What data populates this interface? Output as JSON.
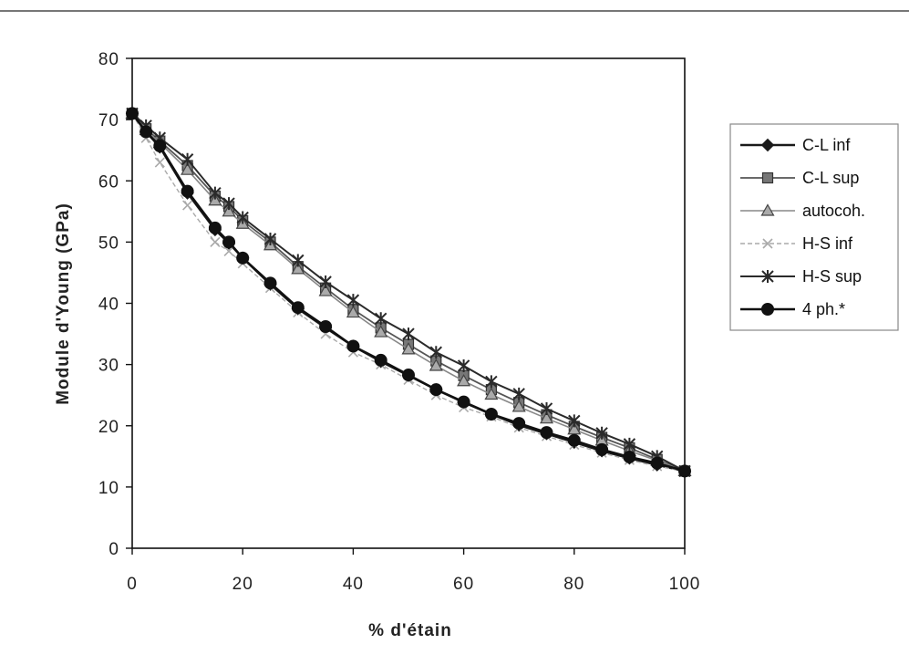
{
  "chart_data": {
    "type": "line",
    "title": "",
    "xlabel": "%  d'étain",
    "ylabel": "Module  d'Young  (GPa)",
    "xlim": [
      0,
      100
    ],
    "ylim": [
      0,
      80
    ],
    "xticks": [
      0,
      20,
      40,
      60,
      80,
      100
    ],
    "yticks": [
      0,
      10,
      20,
      30,
      40,
      50,
      60,
      70,
      80
    ],
    "grid": false,
    "legend_position": "right",
    "x": [
      0,
      2.5,
      5,
      10,
      15,
      17.5,
      20,
      25,
      30,
      35,
      40,
      45,
      50,
      55,
      60,
      65,
      70,
      75,
      80,
      85,
      90,
      95,
      100
    ],
    "series": [
      {
        "name": "C-L  inf",
        "marker": "diamond",
        "color": "#1a1a1a",
        "values": [
          71.0,
          68.0,
          65.5,
          58.0,
          52.0,
          49.8,
          47.4,
          43.1,
          39.1,
          36.0,
          33.0,
          30.5,
          28.2,
          25.9,
          23.8,
          21.9,
          20.1,
          18.7,
          17.3,
          15.9,
          14.7,
          13.6,
          12.6
        ]
      },
      {
        "name": "C-L  sup",
        "marker": "square",
        "color": "#555555",
        "values": [
          71.0,
          68.5,
          66.5,
          62.5,
          57.5,
          55.8,
          53.5,
          50.0,
          46.0,
          42.5,
          39.0,
          36.0,
          33.3,
          30.6,
          28.2,
          25.9,
          23.8,
          21.8,
          19.9,
          18.1,
          16.4,
          14.5,
          12.6
        ]
      },
      {
        "name": "autocoh.",
        "marker": "triangle",
        "color": "#888888",
        "values": [
          71.0,
          68.3,
          66.2,
          61.8,
          56.8,
          55.0,
          53.0,
          49.5,
          45.6,
          42.0,
          38.5,
          35.3,
          32.5,
          29.8,
          27.3,
          25.1,
          23.1,
          21.2,
          19.4,
          17.6,
          15.9,
          14.3,
          12.6
        ]
      },
      {
        "name": "H-S  inf",
        "marker": "x",
        "color": "#aaaaaa",
        "values": [
          71.0,
          67.0,
          63.0,
          56.0,
          50.0,
          48.5,
          46.5,
          42.5,
          38.5,
          35.0,
          32.0,
          30.0,
          27.5,
          25.0,
          23.0,
          21.5,
          19.7,
          18.3,
          16.9,
          15.6,
          14.4,
          13.4,
          12.6
        ]
      },
      {
        "name": "H-S  sup",
        "marker": "asterisk",
        "color": "#2a2a2a",
        "values": [
          71.0,
          69.0,
          67.0,
          63.5,
          58.0,
          56.3,
          54.0,
          50.5,
          47.0,
          43.5,
          40.5,
          37.5,
          35.0,
          32.0,
          29.8,
          27.2,
          25.2,
          22.8,
          20.8,
          18.8,
          17.0,
          15.0,
          12.6
        ]
      },
      {
        "name": "4  ph.*",
        "marker": "circle",
        "color": "#111111",
        "values": [
          71.0,
          68.0,
          65.7,
          58.3,
          52.3,
          50.0,
          47.4,
          43.3,
          39.3,
          36.2,
          33.0,
          30.7,
          28.3,
          25.9,
          23.9,
          21.9,
          20.4,
          18.9,
          17.6,
          16.1,
          14.9,
          13.9,
          12.6
        ]
      }
    ]
  }
}
